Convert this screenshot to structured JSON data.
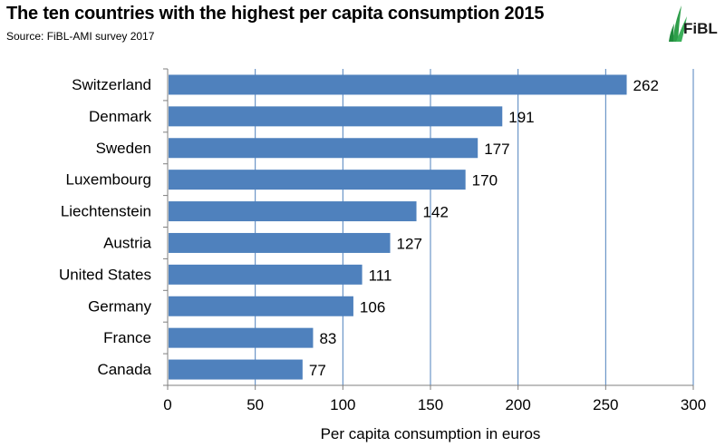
{
  "header": {
    "title": "The ten countries with the highest per capita consumption 2015",
    "subtitle": "Source: FiBL-AMI survey 2017"
  },
  "logo": {
    "text": "FiBL",
    "icon": "fibl-leaf-logo"
  },
  "chart_data": {
    "type": "bar",
    "orientation": "horizontal",
    "categories": [
      "Switzerland",
      "Denmark",
      "Sweden",
      "Luxembourg",
      "Liechtenstein",
      "Austria",
      "United States",
      "Germany",
      "France",
      "Canada"
    ],
    "values": [
      262,
      191,
      177,
      170,
      142,
      127,
      111,
      106,
      83,
      77
    ],
    "title": "The ten countries with the highest per capita consumption 2015",
    "xlabel": "Per capita consumption in euros",
    "ylabel": "",
    "xlim": [
      0,
      300
    ],
    "xticks": [
      0,
      50,
      100,
      150,
      200,
      250,
      300
    ],
    "grid": "vertical",
    "legend": "none",
    "data_labels": true,
    "colors": {
      "bar": "#4f81bd",
      "grid": "#4f81bd",
      "axis": "#7f7f7f"
    }
  }
}
